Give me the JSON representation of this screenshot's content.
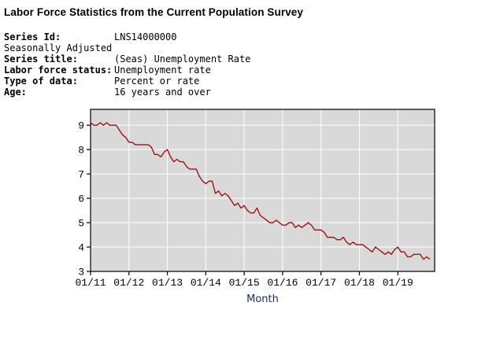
{
  "header": {
    "title": "Labor Force Statistics from the Current Population Survey"
  },
  "metadata": {
    "rows": [
      {
        "label": "Series Id:",
        "value": "LNS14000000"
      },
      {
        "label": "Seasonally Adjusted",
        "value": ""
      },
      {
        "label": "Series title:",
        "value": "(Seas) Unemployment Rate"
      },
      {
        "label": "Labor force status:",
        "value": "Unemployment rate"
      },
      {
        "label": "Type of data:",
        "value": "Percent or rate"
      },
      {
        "label": "Age:",
        "value": "16 years and over"
      }
    ]
  },
  "chart_data": {
    "type": "line",
    "title": "",
    "xlabel": "Month",
    "ylabel": "",
    "x_start": "2011-01",
    "x_interval": "month",
    "x_tick_labels": [
      "01/11",
      "01/12",
      "01/13",
      "01/14",
      "01/15",
      "01/16",
      "01/17",
      "01/18",
      "01/19"
    ],
    "months_per_tick": 12,
    "y_ticks": [
      3,
      4,
      5,
      6,
      7,
      8,
      9
    ],
    "ylim": [
      3,
      9.65
    ],
    "xlim_months": [
      0,
      107.5
    ],
    "grid": true,
    "legend_position": "none",
    "series": [
      {
        "name": "(Seas) Unemployment Rate",
        "values": [
          9.1,
          9.0,
          9.0,
          9.1,
          9.0,
          9.1,
          9.0,
          9.0,
          9.0,
          8.8,
          8.6,
          8.5,
          8.3,
          8.3,
          8.2,
          8.2,
          8.2,
          8.2,
          8.2,
          8.1,
          7.8,
          7.8,
          7.7,
          7.9,
          8.0,
          7.7,
          7.5,
          7.6,
          7.5,
          7.5,
          7.3,
          7.2,
          7.2,
          7.2,
          6.9,
          6.7,
          6.6,
          6.7,
          6.7,
          6.2,
          6.3,
          6.1,
          6.2,
          6.1,
          5.9,
          5.7,
          5.8,
          5.6,
          5.7,
          5.5,
          5.4,
          5.4,
          5.6,
          5.3,
          5.2,
          5.1,
          5.0,
          5.0,
          5.1,
          5.0,
          4.9,
          4.9,
          5.0,
          5.0,
          4.8,
          4.9,
          4.8,
          4.9,
          5.0,
          4.9,
          4.7,
          4.7,
          4.7,
          4.6,
          4.4,
          4.4,
          4.4,
          4.3,
          4.3,
          4.4,
          4.2,
          4.1,
          4.2,
          4.1,
          4.1,
          4.1,
          4.0,
          3.9,
          3.8,
          4.0,
          3.9,
          3.8,
          3.7,
          3.8,
          3.7,
          3.9,
          4.0,
          3.8,
          3.8,
          3.6,
          3.6,
          3.7,
          3.7,
          3.7,
          3.5,
          3.6,
          3.5
        ]
      }
    ],
    "colors": {
      "line": "#a31111",
      "plot_bg": "#d9d9d9",
      "grid": "#ffffff",
      "axis": "#000000",
      "xlabel": "#1a2f66"
    }
  }
}
